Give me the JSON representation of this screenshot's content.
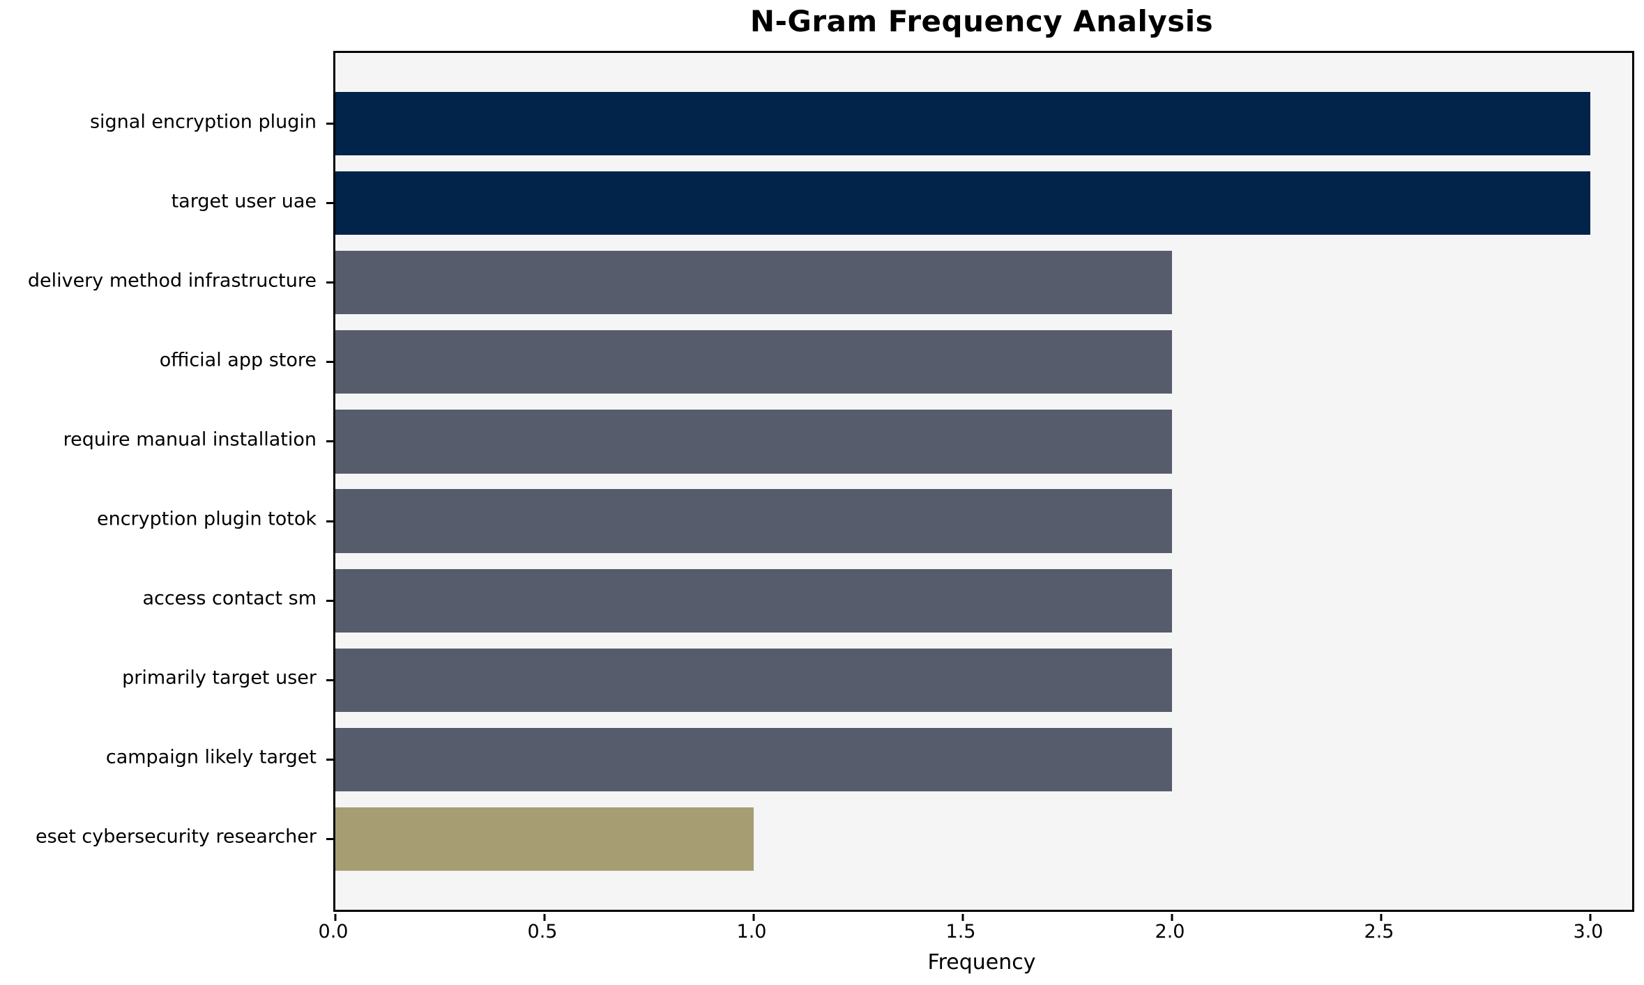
{
  "page": {
    "background": "#ffffff"
  },
  "chart_data": {
    "type": "bar",
    "orientation": "horizontal",
    "title": "N-Gram Frequency Analysis",
    "xlabel": "Frequency",
    "ylabel": "",
    "categories": [
      "signal encryption plugin",
      "target user uae",
      "delivery method infrastructure",
      "official app store",
      "require manual installation",
      "encryption plugin totok",
      "access contact sm",
      "primarily target user",
      "campaign likely target",
      "eset cybersecurity researcher"
    ],
    "values": [
      3,
      3,
      2,
      2,
      2,
      2,
      2,
      2,
      2,
      1
    ],
    "bar_colors": [
      "#02234a",
      "#02234a",
      "#565c6b",
      "#565c6b",
      "#565c6b",
      "#565c6b",
      "#565c6b",
      "#565c6b",
      "#565c6b",
      "#a79d73"
    ],
    "xlim": [
      0,
      3.1
    ],
    "xticks": [
      "0.0",
      "0.5",
      "1.0",
      "1.5",
      "2.0",
      "2.5",
      "3.0"
    ],
    "xtick_values": [
      0,
      0.5,
      1,
      1.5,
      2,
      2.5,
      3
    ],
    "plot_background": "#f5f5f6",
    "axis_color": "#000000",
    "grid": false,
    "legend": null,
    "bar_height_fraction": 0.8
  }
}
